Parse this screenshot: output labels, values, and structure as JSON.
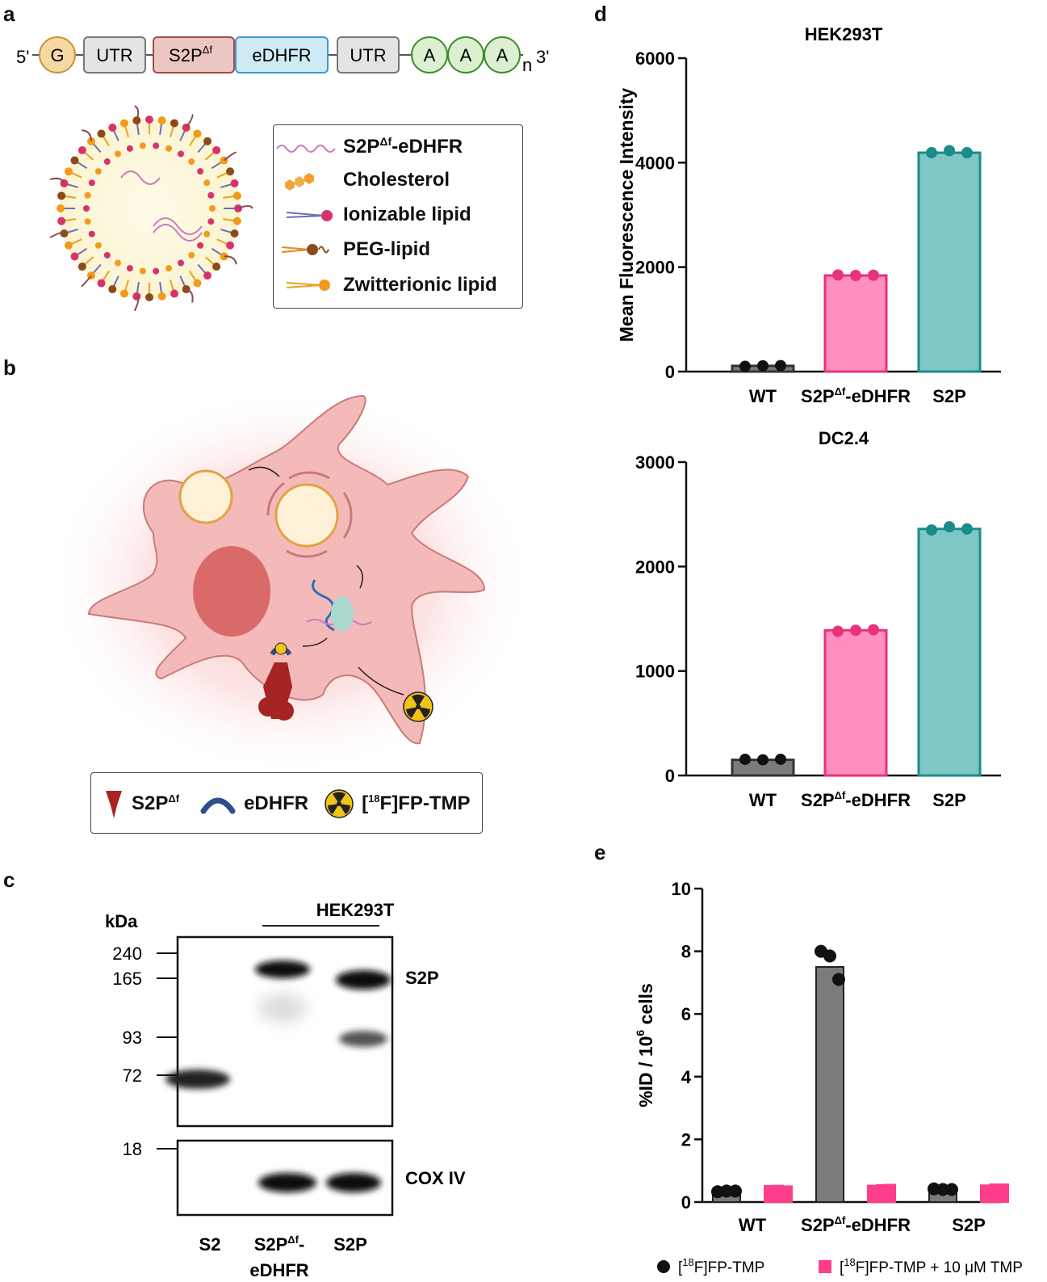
{
  "panels": {
    "a": "a",
    "b": "b",
    "c": "c",
    "d": "d",
    "e": "e"
  },
  "construct": {
    "five_prime": "5'",
    "three_prime": "3'",
    "subscript_n": "n",
    "boxes": [
      "G",
      "UTR",
      "S2P",
      "eDHFR",
      "UTR",
      "A",
      "A",
      "A"
    ],
    "s2p_superscript": "Δf",
    "colors": {
      "cap": "#f6d9a2",
      "utr": "#e4e4e4",
      "s2p": "#ecc6c3",
      "edhfr": "#cfeaf4",
      "polyA": "#dcefd0"
    }
  },
  "lnp_legend": {
    "items": [
      {
        "text": "S2P",
        "sup": "Δf",
        "suffix": "-eDHFR",
        "icon": "mrna-icon"
      },
      {
        "text": "Cholesterol",
        "sup": "",
        "suffix": "",
        "icon": "cholesterol-icon"
      },
      {
        "text": "Ionizable lipid",
        "sup": "",
        "suffix": "",
        "icon": "ionizable-lipid-icon"
      },
      {
        "text": "PEG-lipid",
        "sup": "",
        "suffix": "",
        "icon": "peg-lipid-icon"
      },
      {
        "text": "Zwitterionic lipid",
        "sup": "",
        "suffix": "",
        "icon": "zwitterionic-lipid-icon"
      }
    ]
  },
  "cell_legend": {
    "s2p": "S2P",
    "s2p_sup": "Δf",
    "edhfr": "eDHFR",
    "tracer_pre": "[",
    "tracer_sup": "18",
    "tracer_post": "F]FP-TMP"
  },
  "blot": {
    "kda_label": "kDa",
    "group_label": "HEK293T",
    "markers_top": [
      "240",
      "165",
      "93",
      "72"
    ],
    "markers_bottom": [
      "18"
    ],
    "right_labels": [
      "S2P",
      "COX IV"
    ],
    "lanes": [
      "S2",
      "S2P",
      "S2P"
    ],
    "lane2_sup": "Δf",
    "lane2_suffix": "-",
    "lane2_line2": "eDHFR"
  },
  "chart_data": [
    {
      "type": "bar",
      "title": "HEK293T",
      "ylabel": "Mean Fluorescence Intensity",
      "categories": [
        "WT",
        "S2P",
        "S2P"
      ],
      "category_sup": [
        "",
        "Δf",
        ""
      ],
      "category_suffix": [
        "",
        "-eDHFR",
        ""
      ],
      "values": [
        110,
        1840,
        4190
      ],
      "points": [
        [
          100,
          110,
          115
        ],
        [
          1850,
          1840,
          1845
        ],
        [
          4190,
          4230,
          4190
        ]
      ],
      "yticks": [
        "0",
        "2000",
        "4000",
        "6000"
      ],
      "ylim": [
        0,
        6000
      ],
      "colors": [
        "#7b7b7b",
        "#ff8fbf",
        "#7ec7c6"
      ],
      "edge_colors": [
        "#333333",
        "#e8327a",
        "#1a8c89"
      ]
    },
    {
      "type": "bar",
      "title": "DC2.4",
      "ylabel": "",
      "categories": [
        "WT",
        "S2P",
        "S2P"
      ],
      "category_sup": [
        "",
        "Δf",
        ""
      ],
      "category_suffix": [
        "",
        "-eDHFR",
        ""
      ],
      "values": [
        150,
        1390,
        2360
      ],
      "points": [
        [
          155,
          150,
          155
        ],
        [
          1380,
          1390,
          1395
        ],
        [
          2350,
          2380,
          2360
        ]
      ],
      "yticks": [
        "0",
        "1000",
        "2000",
        "3000"
      ],
      "ylim": [
        0,
        3000
      ],
      "colors": [
        "#7b7b7b",
        "#ff8fbf",
        "#7ec7c6"
      ],
      "edge_colors": [
        "#333333",
        "#e8327a",
        "#1a8c89"
      ]
    },
    {
      "type": "bar",
      "title": "",
      "ylabel": "%ID / 10",
      "ylabel_sup": "6",
      "ylabel_suffix": " cells",
      "categories": [
        "WT",
        "S2P",
        "S2P"
      ],
      "category_sup": [
        "",
        "Δf",
        ""
      ],
      "category_suffix": [
        "",
        "-eDHFR",
        ""
      ],
      "series": [
        {
          "name": "[18F]FP-TMP",
          "name_parts": [
            "[",
            "18",
            "F]FP-TMP"
          ],
          "values": [
            0.35,
            7.5,
            0.4
          ],
          "points": [
            [
              0.33,
              0.35,
              0.35
            ],
            [
              8.0,
              7.85,
              7.1
            ],
            [
              0.42,
              0.4,
              0.4
            ]
          ],
          "color": "#7b7b7b",
          "marker": "circle",
          "marker_color": "#111111"
        },
        {
          "name": "[18F]FP-TMP + 10 μM TMP",
          "name_parts": [
            "[",
            "18",
            "F]FP-TMP + 10 μM TMP"
          ],
          "values": [
            0.36,
            0.38,
            0.4
          ],
          "points": [
            [
              0.36,
              0.37,
              0.35
            ],
            [
              0.37,
              0.39,
              0.4
            ],
            [
              0.38,
              0.41,
              0.41
            ]
          ],
          "color": "#ff3d8b",
          "marker": "square",
          "marker_color": "#ff3d8b"
        }
      ],
      "yticks": [
        "0",
        "2",
        "4",
        "6",
        "8",
        "10"
      ],
      "ylim": [
        0,
        10
      ]
    }
  ]
}
